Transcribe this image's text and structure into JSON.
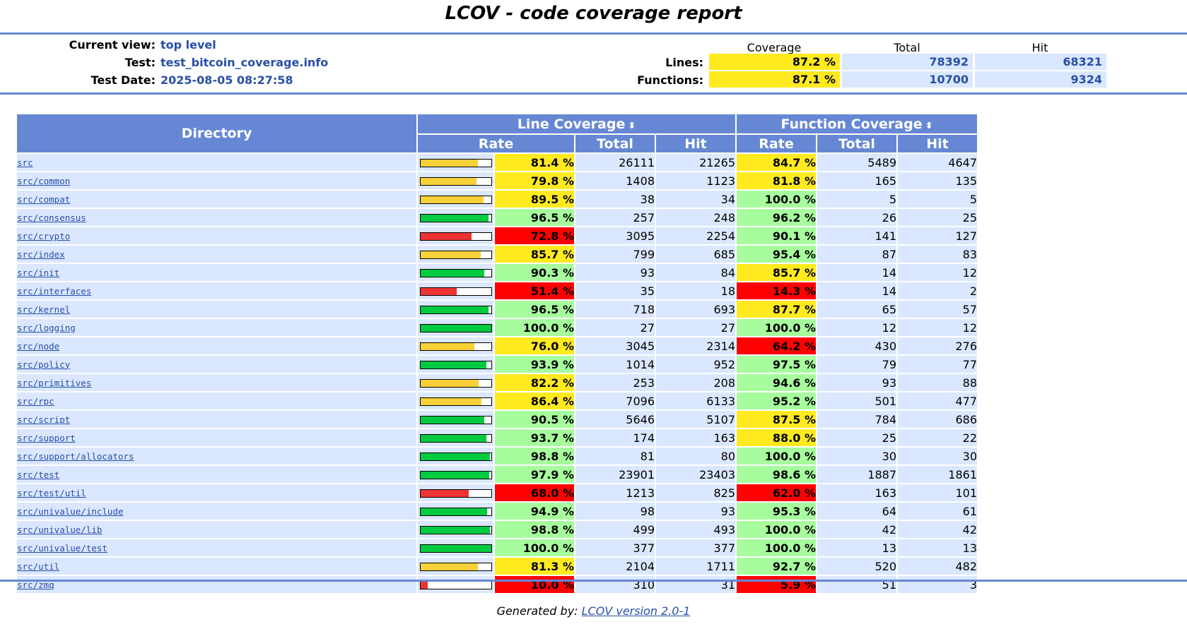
{
  "title": "LCOV - code coverage report",
  "info": {
    "current_view_label": "Current view:",
    "current_view_value": "top level",
    "test_label": "Test:",
    "test_value": "test_bitcoin_coverage.info",
    "test_date_label": "Test Date:",
    "test_date_value": "2025-08-05 08:27:58"
  },
  "summary": {
    "headers": {
      "coverage": "Coverage",
      "total": "Total",
      "hit": "Hit"
    },
    "lines": {
      "label": "Lines:",
      "coverage": "87.2 %",
      "total": "78392",
      "hit": "68321"
    },
    "functions": {
      "label": "Functions:",
      "coverage": "87.1 %",
      "total": "10700",
      "hit": "9324"
    }
  },
  "table": {
    "headers": {
      "directory": "Directory",
      "line_coverage": "Line Coverage",
      "function_coverage": "Function Coverage",
      "rate": "Rate",
      "total": "Total",
      "hit": "Hit",
      "sort_icon": "⬍"
    },
    "rows": [
      {
        "name": "src",
        "line_rate": "81.4 %",
        "line_pct": 81.4,
        "line_total": "26111",
        "line_hit": "21265",
        "func_rate": "84.7 %",
        "func_pct": 84.7,
        "func_total": "5489",
        "func_hit": "4647"
      },
      {
        "name": "src/common",
        "line_rate": "79.8 %",
        "line_pct": 79.8,
        "line_total": "1408",
        "line_hit": "1123",
        "func_rate": "81.8 %",
        "func_pct": 81.8,
        "func_total": "165",
        "func_hit": "135"
      },
      {
        "name": "src/compat",
        "line_rate": "89.5 %",
        "line_pct": 89.5,
        "line_total": "38",
        "line_hit": "34",
        "func_rate": "100.0 %",
        "func_pct": 100.0,
        "func_total": "5",
        "func_hit": "5"
      },
      {
        "name": "src/consensus",
        "line_rate": "96.5 %",
        "line_pct": 96.5,
        "line_total": "257",
        "line_hit": "248",
        "func_rate": "96.2 %",
        "func_pct": 96.2,
        "func_total": "26",
        "func_hit": "25"
      },
      {
        "name": "src/crypto",
        "line_rate": "72.8 %",
        "line_pct": 72.8,
        "line_total": "3095",
        "line_hit": "2254",
        "func_rate": "90.1 %",
        "func_pct": 90.1,
        "func_total": "141",
        "func_hit": "127"
      },
      {
        "name": "src/index",
        "line_rate": "85.7 %",
        "line_pct": 85.7,
        "line_total": "799",
        "line_hit": "685",
        "func_rate": "95.4 %",
        "func_pct": 95.4,
        "func_total": "87",
        "func_hit": "83"
      },
      {
        "name": "src/init",
        "line_rate": "90.3 %",
        "line_pct": 90.3,
        "line_total": "93",
        "line_hit": "84",
        "func_rate": "85.7 %",
        "func_pct": 85.7,
        "func_total": "14",
        "func_hit": "12"
      },
      {
        "name": "src/interfaces",
        "line_rate": "51.4 %",
        "line_pct": 51.4,
        "line_total": "35",
        "line_hit": "18",
        "func_rate": "14.3 %",
        "func_pct": 14.3,
        "func_total": "14",
        "func_hit": "2"
      },
      {
        "name": "src/kernel",
        "line_rate": "96.5 %",
        "line_pct": 96.5,
        "line_total": "718",
        "line_hit": "693",
        "func_rate": "87.7 %",
        "func_pct": 87.7,
        "func_total": "65",
        "func_hit": "57"
      },
      {
        "name": "src/logging",
        "line_rate": "100.0 %",
        "line_pct": 100.0,
        "line_total": "27",
        "line_hit": "27",
        "func_rate": "100.0 %",
        "func_pct": 100.0,
        "func_total": "12",
        "func_hit": "12"
      },
      {
        "name": "src/node",
        "line_rate": "76.0 %",
        "line_pct": 76.0,
        "line_total": "3045",
        "line_hit": "2314",
        "func_rate": "64.2 %",
        "func_pct": 64.2,
        "func_total": "430",
        "func_hit": "276"
      },
      {
        "name": "src/policy",
        "line_rate": "93.9 %",
        "line_pct": 93.9,
        "line_total": "1014",
        "line_hit": "952",
        "func_rate": "97.5 %",
        "func_pct": 97.5,
        "func_total": "79",
        "func_hit": "77"
      },
      {
        "name": "src/primitives",
        "line_rate": "82.2 %",
        "line_pct": 82.2,
        "line_total": "253",
        "line_hit": "208",
        "func_rate": "94.6 %",
        "func_pct": 94.6,
        "func_total": "93",
        "func_hit": "88"
      },
      {
        "name": "src/rpc",
        "line_rate": "86.4 %",
        "line_pct": 86.4,
        "line_total": "7096",
        "line_hit": "6133",
        "func_rate": "95.2 %",
        "func_pct": 95.2,
        "func_total": "501",
        "func_hit": "477"
      },
      {
        "name": "src/script",
        "line_rate": "90.5 %",
        "line_pct": 90.5,
        "line_total": "5646",
        "line_hit": "5107",
        "func_rate": "87.5 %",
        "func_pct": 87.5,
        "func_total": "784",
        "func_hit": "686"
      },
      {
        "name": "src/support",
        "line_rate": "93.7 %",
        "line_pct": 93.7,
        "line_total": "174",
        "line_hit": "163",
        "func_rate": "88.0 %",
        "func_pct": 88.0,
        "func_total": "25",
        "func_hit": "22"
      },
      {
        "name": "src/support/allocators",
        "line_rate": "98.8 %",
        "line_pct": 98.8,
        "line_total": "81",
        "line_hit": "80",
        "func_rate": "100.0 %",
        "func_pct": 100.0,
        "func_total": "30",
        "func_hit": "30"
      },
      {
        "name": "src/test",
        "line_rate": "97.9 %",
        "line_pct": 97.9,
        "line_total": "23901",
        "line_hit": "23403",
        "func_rate": "98.6 %",
        "func_pct": 98.6,
        "func_total": "1887",
        "func_hit": "1861"
      },
      {
        "name": "src/test/util",
        "line_rate": "68.0 %",
        "line_pct": 68.0,
        "line_total": "1213",
        "line_hit": "825",
        "func_rate": "62.0 %",
        "func_pct": 62.0,
        "func_total": "163",
        "func_hit": "101"
      },
      {
        "name": "src/univalue/include",
        "line_rate": "94.9 %",
        "line_pct": 94.9,
        "line_total": "98",
        "line_hit": "93",
        "func_rate": "95.3 %",
        "func_pct": 95.3,
        "func_total": "64",
        "func_hit": "61"
      },
      {
        "name": "src/univalue/lib",
        "line_rate": "98.8 %",
        "line_pct": 98.8,
        "line_total": "499",
        "line_hit": "493",
        "func_rate": "100.0 %",
        "func_pct": 100.0,
        "func_total": "42",
        "func_hit": "42"
      },
      {
        "name": "src/univalue/test",
        "line_rate": "100.0 %",
        "line_pct": 100.0,
        "line_total": "377",
        "line_hit": "377",
        "func_rate": "100.0 %",
        "func_pct": 100.0,
        "func_total": "13",
        "func_hit": "13"
      },
      {
        "name": "src/util",
        "line_rate": "81.3 %",
        "line_pct": 81.3,
        "line_total": "2104",
        "line_hit": "1711",
        "func_rate": "92.7 %",
        "func_pct": 92.7,
        "func_total": "520",
        "func_hit": "482"
      },
      {
        "name": "src/zmq",
        "line_rate": "10.0 %",
        "line_pct": 10.0,
        "line_total": "310",
        "line_hit": "31",
        "func_rate": "5.9 %",
        "func_pct": 5.9,
        "func_total": "51",
        "func_hit": "3"
      }
    ]
  },
  "colors": {
    "header_blue": "#6688d4",
    "cell_blue": "#dae7fe",
    "high_green": "#a7fc9d",
    "medium_yellow": "#ffea20",
    "low_red": "#ff0000",
    "bar_green": "#00cb40",
    "bar_yellow": "#f8d038",
    "bar_red": "#ee3333"
  },
  "footer": {
    "prefix": "Generated by:",
    "link": "LCOV version 2.0-1"
  }
}
